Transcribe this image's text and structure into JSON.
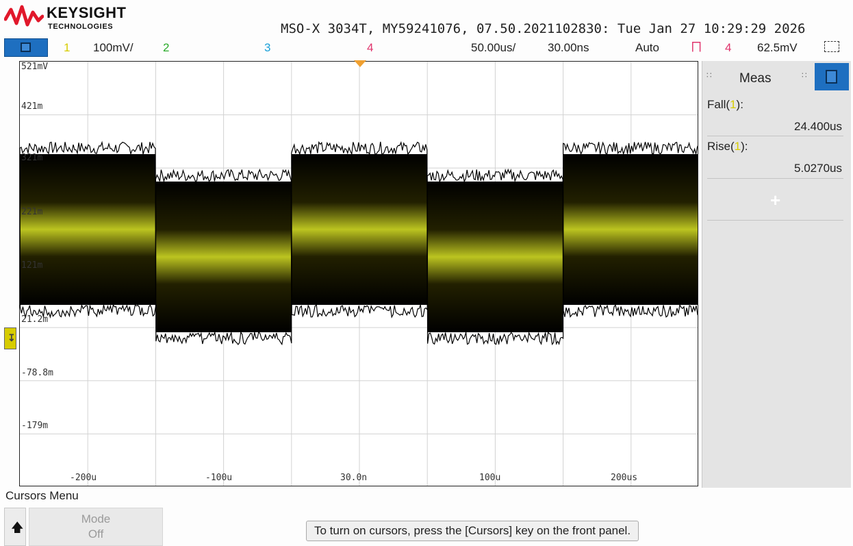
{
  "brand": {
    "name": "KEYSIGHT",
    "sub": "TECHNOLOGIES"
  },
  "header": {
    "info": "MSO-X 3034T, MY59241076, 07.50.2021102830: Tue Jan 27 10:29:29 2026"
  },
  "channel_bar": {
    "ch1_num": "1",
    "ch1_scale": "100mV/",
    "ch2_num": "2",
    "ch3_num": "3",
    "ch4_num": "4",
    "timebase": "50.00us/",
    "delay": "30.00ns",
    "trigger_mode": "Auto",
    "trigger_source": "4",
    "trigger_level": "62.5mV"
  },
  "graticule": {
    "y_labels": [
      "521mV",
      "421m",
      "321m",
      "221m",
      "121m",
      "21.2m",
      "-78.8m",
      "-179m"
    ],
    "x_labels": [
      "-200u",
      "-100u",
      "30.0n",
      "100u",
      "200us"
    ]
  },
  "meas": {
    "title": "Meas",
    "items": [
      {
        "name_pre": "Fall(",
        "ch": "1",
        "name_post": "):",
        "value": "24.400us"
      },
      {
        "name_pre": "Rise(",
        "ch": "1",
        "name_post": "):",
        "value": "5.0270us"
      }
    ],
    "add_label": "+"
  },
  "bottom": {
    "cursors_menu": "Cursors Menu",
    "mode_label": "Mode",
    "mode_value": "Off",
    "hint": "To turn on cursors, press the [Cursors] key on the front panel."
  },
  "colors": {
    "ch1": "#d7cc00",
    "ch2": "#2bab2b",
    "ch3": "#1aa0d8",
    "ch4": "#e0336c",
    "accent": "#1e6fc0"
  },
  "icons": [
    "keysight-wave-icon",
    "menu-icon",
    "trigger-edge-icon",
    "zoom-icon",
    "ground-marker-icon",
    "meas-menu-icon",
    "up-arrow-icon"
  ]
}
